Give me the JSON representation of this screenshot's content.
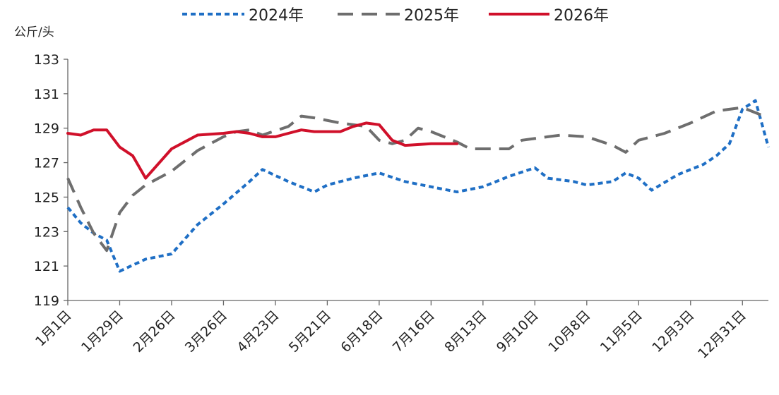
{
  "chart_data": {
    "type": "line",
    "unit": "公斤/头",
    "ylim": [
      119,
      133
    ],
    "yticks": [
      133,
      131,
      129,
      127,
      125,
      123,
      121,
      119
    ],
    "x_tick_labels": [
      "1月1日",
      "1月29日",
      "2月26日",
      "3月26日",
      "4月23日",
      "5月21日",
      "6月18日",
      "7月16日",
      "8月13日",
      "9月10日",
      "10月8日",
      "11月5日",
      "12月3日",
      "12月31日"
    ],
    "x_domain_days": [
      0,
      364
    ],
    "grid": false,
    "legend_position": "top-center",
    "series": [
      {
        "name": "2024年",
        "color": "#1f6fc5",
        "style": "dotted",
        "points": [
          [
            0,
            124.4
          ],
          [
            7,
            123.5
          ],
          [
            14,
            122.9
          ],
          [
            21,
            122.5
          ],
          [
            28,
            120.7
          ],
          [
            42,
            121.4
          ],
          [
            56,
            121.7
          ],
          [
            70,
            123.4
          ],
          [
            84,
            124.6
          ],
          [
            98,
            125.9
          ],
          [
            105,
            126.6
          ],
          [
            119,
            125.9
          ],
          [
            133,
            125.3
          ],
          [
            140,
            125.7
          ],
          [
            154,
            126.1
          ],
          [
            168,
            126.4
          ],
          [
            182,
            125.9
          ],
          [
            196,
            125.6
          ],
          [
            210,
            125.3
          ],
          [
            224,
            125.6
          ],
          [
            238,
            126.2
          ],
          [
            252,
            126.7
          ],
          [
            259,
            126.1
          ],
          [
            273,
            125.9
          ],
          [
            280,
            125.7
          ],
          [
            294,
            125.9
          ],
          [
            301,
            126.4
          ],
          [
            308,
            126.1
          ],
          [
            315,
            125.4
          ],
          [
            329,
            126.3
          ],
          [
            343,
            126.9
          ],
          [
            350,
            127.4
          ],
          [
            357,
            128.1
          ],
          [
            364,
            130.1
          ],
          [
            371,
            130.6
          ],
          [
            378,
            127.9
          ]
        ]
      },
      {
        "name": "2025年",
        "color": "#6e6e6e",
        "style": "dashed",
        "points": [
          [
            0,
            126.1
          ],
          [
            7,
            124.4
          ],
          [
            14,
            122.9
          ],
          [
            21,
            121.9
          ],
          [
            28,
            124.1
          ],
          [
            35,
            125.1
          ],
          [
            42,
            125.7
          ],
          [
            56,
            126.5
          ],
          [
            70,
            127.7
          ],
          [
            84,
            128.5
          ],
          [
            91,
            128.8
          ],
          [
            98,
            128.9
          ],
          [
            105,
            128.6
          ],
          [
            119,
            129.1
          ],
          [
            126,
            129.7
          ],
          [
            133,
            129.6
          ],
          [
            147,
            129.3
          ],
          [
            161,
            129.1
          ],
          [
            168,
            128.3
          ],
          [
            175,
            128.1
          ],
          [
            182,
            128.3
          ],
          [
            189,
            129.0
          ],
          [
            196,
            128.8
          ],
          [
            210,
            128.2
          ],
          [
            217,
            127.8
          ],
          [
            231,
            127.8
          ],
          [
            238,
            127.8
          ],
          [
            245,
            128.3
          ],
          [
            259,
            128.5
          ],
          [
            266,
            128.6
          ],
          [
            280,
            128.5
          ],
          [
            294,
            128.0
          ],
          [
            301,
            127.6
          ],
          [
            308,
            128.3
          ],
          [
            322,
            128.7
          ],
          [
            336,
            129.3
          ],
          [
            350,
            130.0
          ],
          [
            364,
            130.2
          ],
          [
            378,
            129.6
          ]
        ]
      },
      {
        "name": "2026年",
        "color": "#d0102a",
        "style": "solid",
        "points": [
          [
            0,
            128.7
          ],
          [
            7,
            128.6
          ],
          [
            14,
            128.9
          ],
          [
            21,
            128.9
          ],
          [
            28,
            127.9
          ],
          [
            35,
            127.4
          ],
          [
            42,
            126.1
          ],
          [
            56,
            127.8
          ],
          [
            63,
            128.2
          ],
          [
            70,
            128.6
          ],
          [
            84,
            128.7
          ],
          [
            91,
            128.8
          ],
          [
            98,
            128.7
          ],
          [
            105,
            128.5
          ],
          [
            112,
            128.5
          ],
          [
            119,
            128.7
          ],
          [
            126,
            128.9
          ],
          [
            133,
            128.8
          ],
          [
            147,
            128.8
          ],
          [
            154,
            129.1
          ],
          [
            161,
            129.3
          ],
          [
            168,
            129.2
          ],
          [
            175,
            128.3
          ],
          [
            182,
            128.0
          ],
          [
            196,
            128.1
          ],
          [
            203,
            128.1
          ],
          [
            210,
            128.1
          ]
        ]
      }
    ]
  }
}
